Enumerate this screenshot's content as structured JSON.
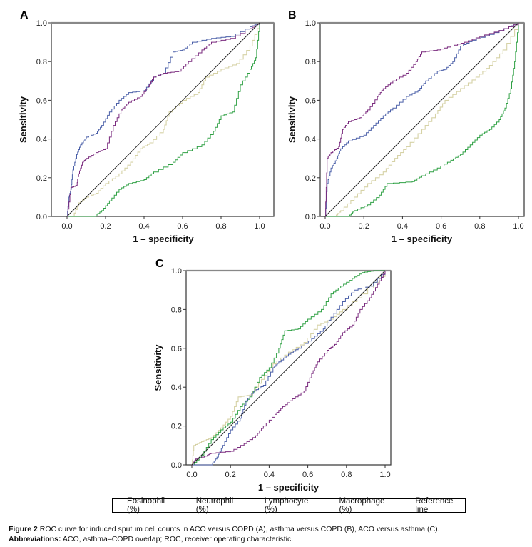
{
  "figure": {
    "caption_label": "Figure 2",
    "caption_text": "ROC curve for induced sputum cell counts in ACO versus COPD (A), asthma versus COPD (B), ACO versus asthma (C).",
    "abbrev_label": "Abbreviations:",
    "abbrev_text": "ACO, asthma–COPD overlap; ROC, receiver operating characteristic."
  },
  "legend": [
    {
      "name": "Eosinophil (%)",
      "color": "#4a5fa8"
    },
    {
      "name": "Neutrophil (%)",
      "color": "#2ea043"
    },
    {
      "name": "Lymphocyte (%)",
      "color": "#d6d2a6"
    },
    {
      "name": "Macrophage (%)",
      "color": "#7a2a7e"
    },
    {
      "name": "Reference line",
      "color": "#222222"
    }
  ],
  "chart_data": [
    {
      "panel": "A",
      "type": "line",
      "title": "ACO versus COPD",
      "xlabel": "1 – specificity",
      "ylabel": "Sensitivity",
      "xlim": [
        -0.08,
        1.08
      ],
      "ylim": [
        0,
        1
      ],
      "xticks": [
        "0.0",
        "0.2",
        "0.4",
        "0.6",
        "0.8",
        "1.0"
      ],
      "yticks": [
        "0.0",
        "0.2",
        "0.4",
        "0.6",
        "0.8",
        "1.0"
      ],
      "grid": false,
      "series": [
        {
          "name": "Eosinophil (%)",
          "points": [
            [
              0,
              0
            ],
            [
              0.01,
              0.1
            ],
            [
              0.02,
              0.14
            ],
            [
              0.03,
              0.24
            ],
            [
              0.05,
              0.32
            ],
            [
              0.07,
              0.37
            ],
            [
              0.1,
              0.41
            ],
            [
              0.15,
              0.43
            ],
            [
              0.18,
              0.47
            ],
            [
              0.22,
              0.54
            ],
            [
              0.27,
              0.6
            ],
            [
              0.32,
              0.64
            ],
            [
              0.4,
              0.65
            ],
            [
              0.45,
              0.72
            ],
            [
              0.5,
              0.74
            ],
            [
              0.55,
              0.85
            ],
            [
              0.6,
              0.86
            ],
            [
              0.65,
              0.9
            ],
            [
              0.75,
              0.92
            ],
            [
              0.85,
              0.93
            ],
            [
              0.95,
              0.98
            ],
            [
              1,
              1
            ]
          ]
        },
        {
          "name": "Neutrophil (%)",
          "points": [
            [
              0,
              0
            ],
            [
              0.14,
              0
            ],
            [
              0.18,
              0.03
            ],
            [
              0.22,
              0.08
            ],
            [
              0.27,
              0.14
            ],
            [
              0.32,
              0.17
            ],
            [
              0.4,
              0.19
            ],
            [
              0.45,
              0.23
            ],
            [
              0.55,
              0.28
            ],
            [
              0.6,
              0.33
            ],
            [
              0.7,
              0.37
            ],
            [
              0.76,
              0.44
            ],
            [
              0.8,
              0.52
            ],
            [
              0.86,
              0.54
            ],
            [
              0.9,
              0.68
            ],
            [
              0.95,
              0.76
            ],
            [
              0.98,
              0.82
            ],
            [
              1,
              1
            ]
          ]
        },
        {
          "name": "Lymphocyte (%)",
          "points": [
            [
              0,
              0
            ],
            [
              0.03,
              0
            ],
            [
              0.06,
              0.07
            ],
            [
              0.1,
              0.1
            ],
            [
              0.15,
              0.12
            ],
            [
              0.2,
              0.17
            ],
            [
              0.27,
              0.22
            ],
            [
              0.33,
              0.28
            ],
            [
              0.38,
              0.35
            ],
            [
              0.43,
              0.38
            ],
            [
              0.5,
              0.45
            ],
            [
              0.53,
              0.54
            ],
            [
              0.6,
              0.6
            ],
            [
              0.68,
              0.64
            ],
            [
              0.72,
              0.72
            ],
            [
              0.8,
              0.76
            ],
            [
              0.88,
              0.79
            ],
            [
              0.95,
              0.88
            ],
            [
              1,
              1
            ]
          ]
        },
        {
          "name": "Macrophage (%)",
          "points": [
            [
              0,
              0
            ],
            [
              0.02,
              0.15
            ],
            [
              0.05,
              0.16
            ],
            [
              0.06,
              0.22
            ],
            [
              0.08,
              0.28
            ],
            [
              0.1,
              0.3
            ],
            [
              0.15,
              0.33
            ],
            [
              0.2,
              0.35
            ],
            [
              0.24,
              0.47
            ],
            [
              0.28,
              0.55
            ],
            [
              0.32,
              0.59
            ],
            [
              0.38,
              0.62
            ],
            [
              0.42,
              0.67
            ],
            [
              0.45,
              0.72
            ],
            [
              0.5,
              0.74
            ],
            [
              0.58,
              0.75
            ],
            [
              0.63,
              0.8
            ],
            [
              0.7,
              0.86
            ],
            [
              0.75,
              0.9
            ],
            [
              0.85,
              0.92
            ],
            [
              0.95,
              0.97
            ],
            [
              1,
              1
            ]
          ]
        },
        {
          "name": "Reference line",
          "points": [
            [
              0,
              0
            ],
            [
              1,
              1
            ]
          ]
        }
      ]
    },
    {
      "panel": "B",
      "type": "line",
      "title": "asthma versus COPD",
      "xlabel": "1 – specificity",
      "ylabel": "Sensitivity",
      "xlim": [
        -0.03,
        1.08
      ],
      "ylim": [
        0,
        1
      ],
      "xticks": [
        "0.0",
        "0.2",
        "0.4",
        "0.6",
        "0.8",
        "1.0"
      ],
      "yticks": [
        "0.0",
        "0.2",
        "0.4",
        "0.6",
        "0.8",
        "1.0"
      ],
      "grid": false,
      "series": [
        {
          "name": "Eosinophil (%)",
          "points": [
            [
              0,
              0
            ],
            [
              0.01,
              0.17
            ],
            [
              0.03,
              0.25
            ],
            [
              0.06,
              0.3
            ],
            [
              0.08,
              0.35
            ],
            [
              0.12,
              0.39
            ],
            [
              0.2,
              0.42
            ],
            [
              0.25,
              0.47
            ],
            [
              0.3,
              0.52
            ],
            [
              0.35,
              0.56
            ],
            [
              0.42,
              0.62
            ],
            [
              0.48,
              0.65
            ],
            [
              0.52,
              0.7
            ],
            [
              0.58,
              0.75
            ],
            [
              0.62,
              0.76
            ],
            [
              0.66,
              0.8
            ],
            [
              0.7,
              0.88
            ],
            [
              0.76,
              0.91
            ],
            [
              0.85,
              0.94
            ],
            [
              0.95,
              0.98
            ],
            [
              1,
              1
            ]
          ]
        },
        {
          "name": "Neutrophil (%)",
          "points": [
            [
              0,
              0
            ],
            [
              0.12,
              0
            ],
            [
              0.15,
              0.03
            ],
            [
              0.22,
              0.06
            ],
            [
              0.28,
              0.11
            ],
            [
              0.32,
              0.17
            ],
            [
              0.45,
              0.18
            ],
            [
              0.5,
              0.21
            ],
            [
              0.58,
              0.25
            ],
            [
              0.65,
              0.29
            ],
            [
              0.7,
              0.32
            ],
            [
              0.75,
              0.37
            ],
            [
              0.8,
              0.42
            ],
            [
              0.85,
              0.45
            ],
            [
              0.9,
              0.5
            ],
            [
              0.93,
              0.56
            ],
            [
              0.96,
              0.66
            ],
            [
              0.98,
              0.8
            ],
            [
              1,
              1
            ]
          ]
        },
        {
          "name": "Lymphocyte (%)",
          "points": [
            [
              0,
              0
            ],
            [
              0.05,
              0
            ],
            [
              0.08,
              0.03
            ],
            [
              0.15,
              0.1
            ],
            [
              0.22,
              0.17
            ],
            [
              0.3,
              0.23
            ],
            [
              0.36,
              0.3
            ],
            [
              0.42,
              0.36
            ],
            [
              0.5,
              0.45
            ],
            [
              0.57,
              0.53
            ],
            [
              0.62,
              0.6
            ],
            [
              0.7,
              0.66
            ],
            [
              0.78,
              0.72
            ],
            [
              0.85,
              0.78
            ],
            [
              0.92,
              0.86
            ],
            [
              1,
              1
            ]
          ]
        },
        {
          "name": "Macrophage (%)",
          "points": [
            [
              0,
              0
            ],
            [
              0.01,
              0.3
            ],
            [
              0.03,
              0.33
            ],
            [
              0.07,
              0.36
            ],
            [
              0.09,
              0.45
            ],
            [
              0.12,
              0.49
            ],
            [
              0.18,
              0.51
            ],
            [
              0.22,
              0.55
            ],
            [
              0.27,
              0.62
            ],
            [
              0.3,
              0.66
            ],
            [
              0.35,
              0.7
            ],
            [
              0.42,
              0.74
            ],
            [
              0.47,
              0.8
            ],
            [
              0.5,
              0.85
            ],
            [
              0.58,
              0.86
            ],
            [
              0.65,
              0.88
            ],
            [
              0.72,
              0.9
            ],
            [
              0.8,
              0.93
            ],
            [
              0.9,
              0.96
            ],
            [
              1,
              1
            ]
          ]
        },
        {
          "name": "Reference line",
          "points": [
            [
              0,
              0
            ],
            [
              1,
              1
            ]
          ]
        }
      ]
    },
    {
      "panel": "C",
      "type": "line",
      "title": "ACO versus asthma",
      "xlabel": "1 – specificity",
      "ylabel": "Sensitivity",
      "xlim": [
        -0.03,
        1.03
      ],
      "ylim": [
        0,
        1
      ],
      "xticks": [
        "0.0",
        "0.2",
        "0.4",
        "0.6",
        "0.8",
        "1.0"
      ],
      "yticks": [
        "0.0",
        "0.2",
        "0.4",
        "0.6",
        "0.8",
        "1.0"
      ],
      "grid": false,
      "series": [
        {
          "name": "Eosinophil (%)",
          "points": [
            [
              0,
              0
            ],
            [
              0.1,
              0
            ],
            [
              0.13,
              0.04
            ],
            [
              0.16,
              0.1
            ],
            [
              0.2,
              0.18
            ],
            [
              0.25,
              0.24
            ],
            [
              0.28,
              0.33
            ],
            [
              0.32,
              0.38
            ],
            [
              0.37,
              0.41
            ],
            [
              0.42,
              0.5
            ],
            [
              0.45,
              0.53
            ],
            [
              0.5,
              0.57
            ],
            [
              0.55,
              0.6
            ],
            [
              0.62,
              0.65
            ],
            [
              0.68,
              0.7
            ],
            [
              0.72,
              0.76
            ],
            [
              0.78,
              0.84
            ],
            [
              0.84,
              0.9
            ],
            [
              0.92,
              0.92
            ],
            [
              1,
              1
            ]
          ]
        },
        {
          "name": "Neutrophil (%)",
          "points": [
            [
              0,
              0
            ],
            [
              0.05,
              0.05
            ],
            [
              0.1,
              0.13
            ],
            [
              0.15,
              0.18
            ],
            [
              0.2,
              0.22
            ],
            [
              0.25,
              0.3
            ],
            [
              0.3,
              0.35
            ],
            [
              0.35,
              0.45
            ],
            [
              0.4,
              0.5
            ],
            [
              0.45,
              0.6
            ],
            [
              0.48,
              0.69
            ],
            [
              0.55,
              0.7
            ],
            [
              0.6,
              0.75
            ],
            [
              0.67,
              0.8
            ],
            [
              0.72,
              0.88
            ],
            [
              0.77,
              0.92
            ],
            [
              0.83,
              0.96
            ],
            [
              0.88,
              0.99
            ],
            [
              0.94,
              1
            ],
            [
              1,
              1
            ]
          ]
        },
        {
          "name": "Lymphocyte (%)",
          "points": [
            [
              0,
              0
            ],
            [
              0.01,
              0.1
            ],
            [
              0.05,
              0.12
            ],
            [
              0.1,
              0.14
            ],
            [
              0.15,
              0.19
            ],
            [
              0.2,
              0.25
            ],
            [
              0.24,
              0.35
            ],
            [
              0.3,
              0.36
            ],
            [
              0.36,
              0.44
            ],
            [
              0.42,
              0.52
            ],
            [
              0.5,
              0.58
            ],
            [
              0.58,
              0.63
            ],
            [
              0.65,
              0.72
            ],
            [
              0.72,
              0.75
            ],
            [
              0.78,
              0.8
            ],
            [
              0.88,
              0.88
            ],
            [
              1,
              1
            ]
          ]
        },
        {
          "name": "Macrophage (%)",
          "points": [
            [
              0,
              0
            ],
            [
              0.02,
              0.03
            ],
            [
              0.08,
              0.05
            ],
            [
              0.1,
              0.06
            ],
            [
              0.2,
              0.07
            ],
            [
              0.27,
              0.11
            ],
            [
              0.33,
              0.15
            ],
            [
              0.37,
              0.2
            ],
            [
              0.43,
              0.26
            ],
            [
              0.47,
              0.3
            ],
            [
              0.52,
              0.34
            ],
            [
              0.58,
              0.38
            ],
            [
              0.62,
              0.47
            ],
            [
              0.65,
              0.53
            ],
            [
              0.7,
              0.59
            ],
            [
              0.74,
              0.62
            ],
            [
              0.78,
              0.68
            ],
            [
              0.83,
              0.72
            ],
            [
              0.87,
              0.8
            ],
            [
              0.92,
              0.86
            ],
            [
              0.96,
              0.93
            ],
            [
              1,
              1
            ]
          ]
        },
        {
          "name": "Reference line",
          "points": [
            [
              0,
              0
            ],
            [
              1,
              1
            ]
          ]
        }
      ]
    }
  ]
}
